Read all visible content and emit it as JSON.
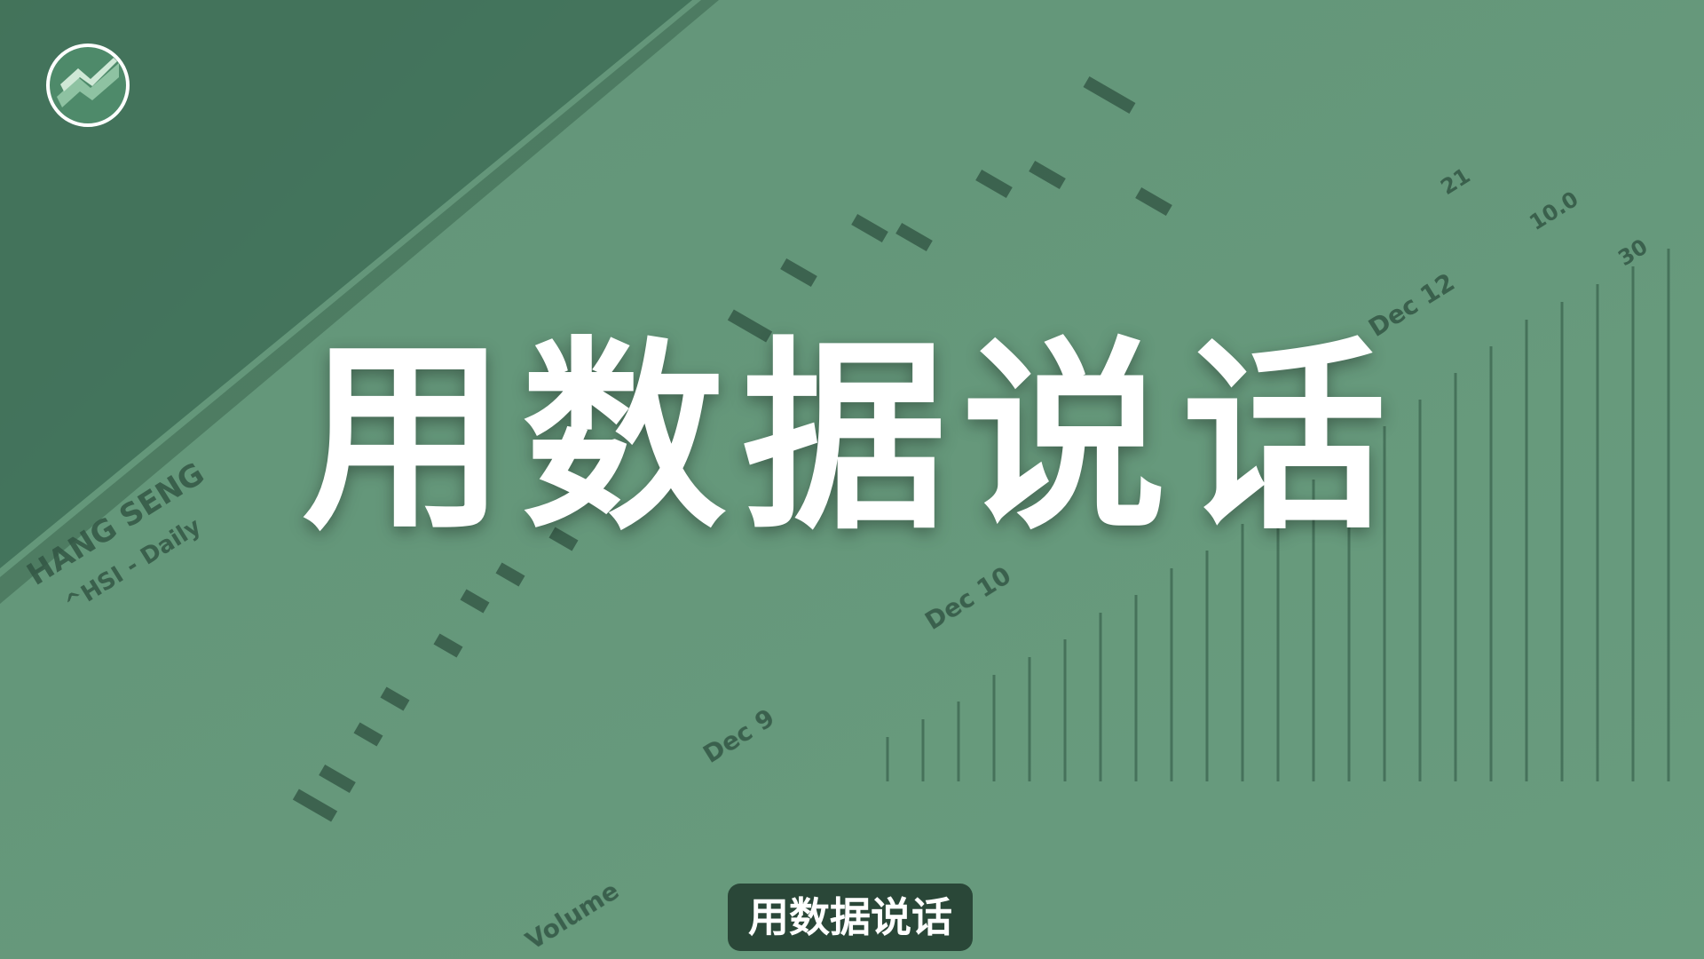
{
  "headline": "用数据说话",
  "subtitle": "用数据说话",
  "background_photo_text": {
    "index_name": "HANG SENG",
    "ticker": "^HSI - Daily",
    "dates": [
      "Dec 9",
      "Dec 10",
      "Dec 12"
    ],
    "volume_label": "Volume",
    "numbers": [
      "21",
      "10.0",
      "30"
    ]
  },
  "colors": {
    "tint": "#5c8c72",
    "headline": "#ffffff",
    "subtitle_bg": "#14281e"
  },
  "icons": {
    "logo": "circle-stock-logo"
  }
}
